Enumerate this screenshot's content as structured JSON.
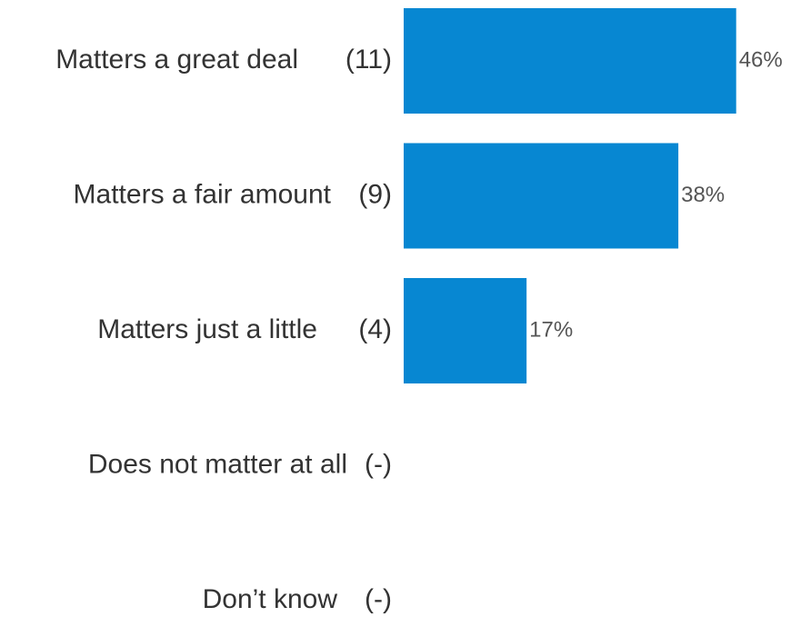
{
  "chart_data": {
    "type": "hbar",
    "categories": [
      "Matters a great deal",
      "Matters a fair amount",
      "Matters just a little",
      "Does not matter at all",
      "Don’t know"
    ],
    "count_labels": [
      "(11)",
      "(9)",
      "(4)",
      "(-)",
      "(-)"
    ],
    "values": [
      46,
      38,
      17,
      null,
      null
    ],
    "value_labels": [
      "46%",
      "38%",
      "17%",
      null,
      null
    ],
    "color": "#0787d2"
  }
}
